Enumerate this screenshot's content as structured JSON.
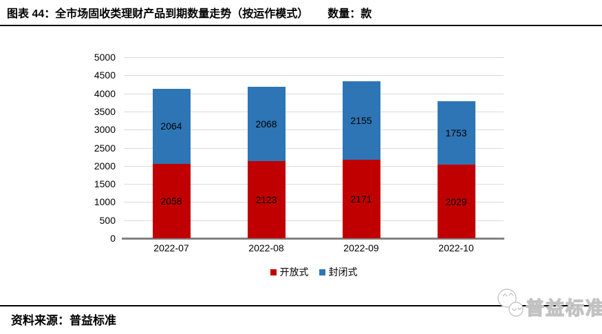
{
  "header": {
    "title": "图表 44：全市场固收类理财产品到期数量走势（按运作模式）",
    "unit_label": "数量：款"
  },
  "chart_data": {
    "type": "bar",
    "stacked": true,
    "title": "全市场固收类理财产品到期数量走势（按运作模式）",
    "unit": "款",
    "categories": [
      "2022-07",
      "2022-08",
      "2022-09",
      "2022-10"
    ],
    "series": [
      {
        "name": "开放式",
        "color": "#C00000",
        "values": [
          2058,
          2123,
          2171,
          2029
        ]
      },
      {
        "name": "封闭式",
        "color": "#2E75B6",
        "values": [
          2064,
          2068,
          2155,
          1753
        ]
      }
    ],
    "totals": [
      4122,
      4191,
      4326,
      3782
    ],
    "ylim": [
      0,
      5000
    ],
    "ytick_step": 500,
    "grid": true,
    "gridline_color": "#d9d9d9",
    "axis_color": "#828282",
    "legend_position": "bottom"
  },
  "footer": {
    "source": "资料来源：普益标准",
    "logo_text": "普益标准"
  }
}
